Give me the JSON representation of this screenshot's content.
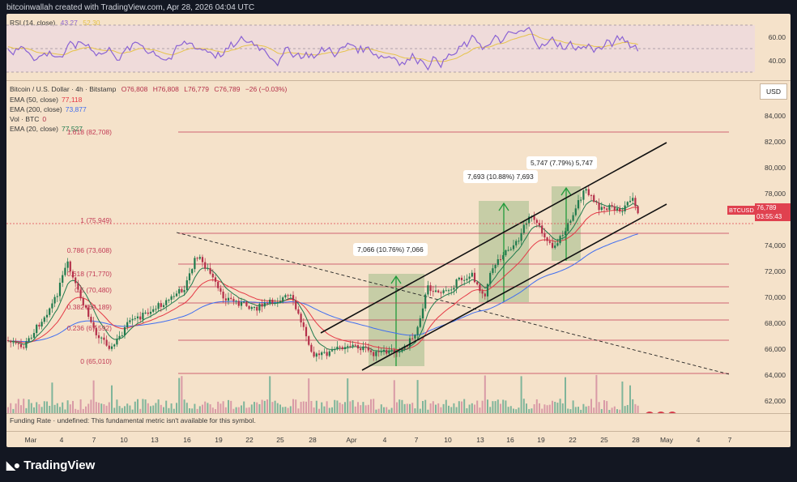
{
  "header": {
    "credit": "bitcoinwallah created with TradingView.com, Apr 28, 2026 04:04 UTC"
  },
  "rsi": {
    "legend_name": "RSI (14, close)",
    "value": "43.27",
    "ma_value": "52.30",
    "ticks": [
      "60.00",
      "40.00"
    ]
  },
  "legend": {
    "symbol": "Bitcoin / U.S. Dollar · 4h · Bitstamp",
    "open": "O76,808",
    "high": "H76,808",
    "low": "L76,779",
    "close": "C76,789",
    "change": "−26 (−0.03%)",
    "ema50_label": "EMA (50, close)",
    "ema50_value": "77,118",
    "ema200_label": "EMA (200, close)",
    "ema200_value": "73,877",
    "vol_label": "Vol · BTC",
    "vol_value": "0",
    "ema20_label": "EMA (20, close)",
    "ema20_value": "77,527"
  },
  "price_axis": {
    "currency": "USD",
    "ticks": [
      "84,000",
      "82,000",
      "80,000",
      "78,000",
      "74,000",
      "72,000",
      "70,000",
      "68,000",
      "66,000",
      "64,000",
      "62,000"
    ]
  },
  "price_tag": {
    "symbol": "BTCUSD",
    "price": "76,789",
    "countdown": "03:55:43"
  },
  "fib_levels": [
    {
      "label": "1.618 (82,708)"
    },
    {
      "label": "1 (75,949)"
    },
    {
      "label": "0.786 (73,608)"
    },
    {
      "label": "0.618 (71,770)"
    },
    {
      "label": "0.5 (70,480)"
    },
    {
      "label": "0.382 (69,189)"
    },
    {
      "label": "0.236 (67,592)"
    },
    {
      "label": "0 (65,010)"
    }
  ],
  "measurements": [
    {
      "label": "7,066 (10.76%) 7,066"
    },
    {
      "label": "7,693 (10.88%) 7,693"
    },
    {
      "label": "5,747 (7.79%) 5,747"
    }
  ],
  "funding": {
    "text": "Funding Rate · undefined: This fundamental metric isn't available for this symbol."
  },
  "date_axis": {
    "labels": [
      "Mar",
      "4",
      "7",
      "10",
      "13",
      "16",
      "19",
      "22",
      "25",
      "28",
      "Apr",
      "4",
      "7",
      "10",
      "13",
      "16",
      "19",
      "22",
      "25",
      "28",
      "May",
      "4",
      "7"
    ]
  },
  "footer": {
    "logo_text": "TradingView"
  },
  "colors": {
    "background": "#f5e2ca",
    "ema50": "#e53946",
    "ema200": "#3f6df0",
    "ema20": "#1f7a4d",
    "rsi": "#8a62d4",
    "rsi_ma": "#e6c34a",
    "fib": "#c23a55",
    "up": "#1f7a4d",
    "down": "#b4304a"
  }
}
